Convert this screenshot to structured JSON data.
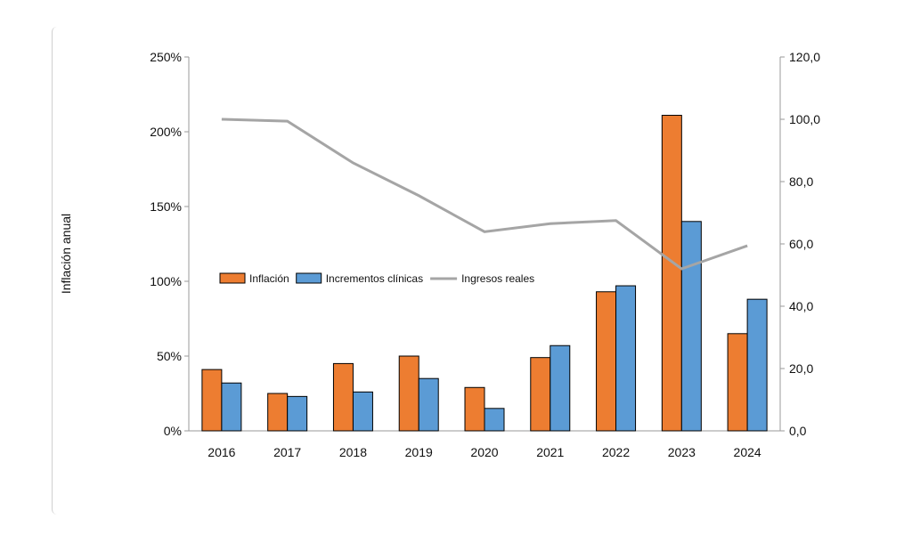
{
  "chart_data": {
    "type": "bar",
    "categories": [
      "2016",
      "2017",
      "2018",
      "2019",
      "2020",
      "2021",
      "2022",
      "2023",
      "2024"
    ],
    "series": [
      {
        "name": "Inflación",
        "kind": "bar",
        "axis": "left",
        "color": "#ED7D31",
        "values": [
          41,
          25,
          45,
          50,
          29,
          49,
          93,
          211,
          65
        ]
      },
      {
        "name": "Incrementos clínicas",
        "kind": "bar",
        "axis": "left",
        "color": "#5B9BD5",
        "values": [
          32,
          23,
          26,
          35,
          15,
          57,
          97,
          140,
          88
        ]
      },
      {
        "name": "Ingresos reales",
        "kind": "line",
        "axis": "right",
        "color": "#A5A5A5",
        "values": [
          100.0,
          99.4,
          86.0,
          75.5,
          63.9,
          66.5,
          67.5,
          52.0,
          59.4
        ]
      }
    ],
    "ylabel": "Inflación anual",
    "xlabel": "",
    "ylim": [
      0,
      250
    ],
    "y_ticks": [
      "0%",
      "50%",
      "100%",
      "150%",
      "200%",
      "250%"
    ],
    "y_tick_values": [
      0,
      50,
      100,
      150,
      200,
      250
    ],
    "y2lim": [
      0,
      120
    ],
    "y2_ticks": [
      "0,0",
      "20,0",
      "40,0",
      "60,0",
      "80,0",
      "100,0",
      "120,0"
    ],
    "y2_tick_values": [
      0,
      20,
      40,
      60,
      80,
      100,
      120
    ],
    "grid": false,
    "legend_position": "middle-left"
  }
}
